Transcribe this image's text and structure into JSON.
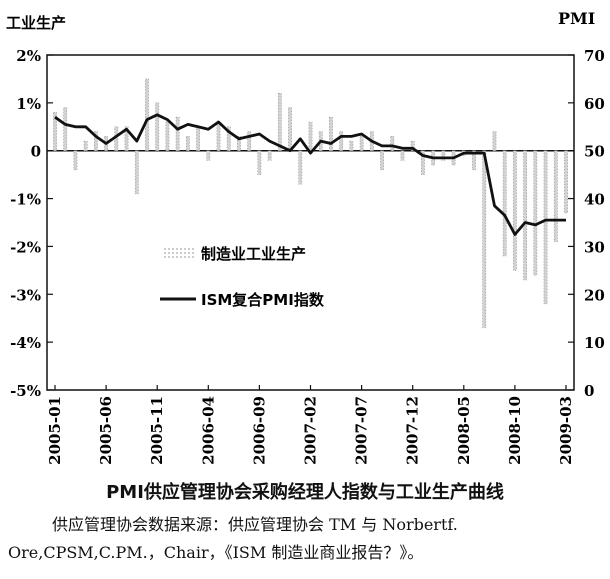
{
  "chart_data": {
    "type": "bar+line",
    "title": "PMI供应管理协会采购经理人指数与工业生产曲线",
    "y_left_label": "工业生产",
    "y_right_label": "PMI",
    "y_left_ticks": [
      "2%",
      "1%",
      "0",
      "-1%",
      "-2%",
      "-3%",
      "-4%",
      "-5%"
    ],
    "y_right_ticks": [
      "70",
      "60",
      "50",
      "40",
      "30",
      "20",
      "10",
      "0"
    ],
    "ylim_left": [
      -5,
      2
    ],
    "ylim_right": [
      0,
      70
    ],
    "x_tick_labels": [
      "2005-01",
      "2005-06",
      "2005-11",
      "2006-04",
      "2006-09",
      "2007-02",
      "2007-07",
      "2007-12",
      "2008-05",
      "2008-10",
      "2009-03"
    ],
    "series": [
      {
        "name": "制造业工业生产",
        "type": "bar",
        "axis": "left",
        "unit": "%",
        "values": [
          0.8,
          0.9,
          -0.4,
          0.2,
          0.4,
          0.3,
          0.5,
          0.5,
          -0.9,
          1.5,
          1.0,
          0.6,
          0.7,
          0.3,
          0.5,
          -0.2,
          0.6,
          0.5,
          0.3,
          0.4,
          -0.5,
          -0.2,
          1.2,
          0.9,
          -0.7,
          0.6,
          0.4,
          0.7,
          0.4,
          0.2,
          0.3,
          0.4,
          -0.4,
          0.3,
          -0.2,
          0.2,
          -0.5,
          -0.3,
          -0.2,
          -0.3,
          -0.1,
          -0.4,
          -3.7,
          0.4,
          -2.2,
          -2.5,
          -2.7,
          -2.6,
          -3.2,
          -1.9,
          -1.3
        ]
      },
      {
        "name": "ISM复合PMI指数",
        "type": "line",
        "axis": "right",
        "values": [
          57,
          55.5,
          55,
          55,
          53,
          51.5,
          53,
          54.5,
          52,
          56.5,
          57.5,
          56.5,
          54.5,
          55.5,
          55,
          54.5,
          56,
          54,
          52.5,
          53,
          53.5,
          52,
          51,
          50,
          52.5,
          49.5,
          52,
          51.5,
          53,
          53,
          53.5,
          52,
          51,
          51,
          50.5,
          50.5,
          49,
          48.5,
          48.5,
          48.5,
          49.5,
          49.5,
          49.5,
          38.5,
          36.5,
          32.5,
          35,
          34.5,
          35.5,
          35.5,
          35.5
        ]
      }
    ]
  },
  "source": {
    "line1": "供应管理协会数据来源：供应管理协会 TM 与 Norbertf.",
    "line2": "Ore,CPSM,C.PM.，Chair，《ISM 制造业商业报告？》。"
  }
}
